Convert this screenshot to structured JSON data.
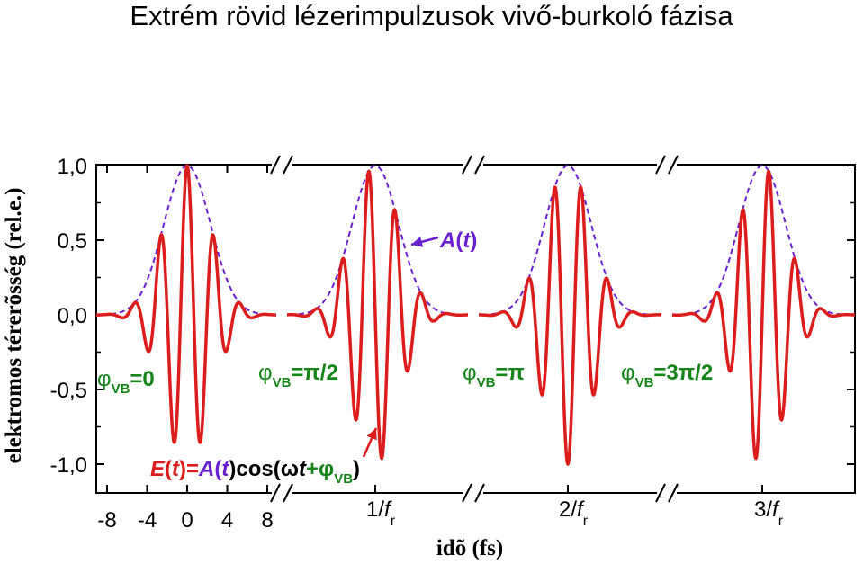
{
  "title": "Extrém rövid lézerimpulzusok vivő-burkoló fázisa",
  "colors": {
    "field": "#dd1c1c",
    "envelope": "#6a1fd1",
    "phase": "#15851a",
    "axis": "#000000"
  },
  "chart_data": {
    "type": "line",
    "title": "Extrém rövid lézerimpulzusok vivő-burkoló fázisa",
    "xlabel": "idõ (fs)",
    "ylabel": "elektromos térerõsség (rel.e.)",
    "ylim": [
      -1.2,
      1.0
    ],
    "yticks": [
      1.0,
      0.5,
      0.0,
      -0.5,
      -1.0
    ],
    "ytick_labels": [
      "1,0",
      "0,5",
      "0,0",
      "-0,5",
      "-1,0"
    ],
    "xlim": [
      -11,
      11
    ],
    "xticks": [
      -8,
      -4,
      0,
      4,
      8
    ],
    "xtick_labels": [
      "-8",
      "-4",
      "0",
      "4",
      "8"
    ],
    "axis_break_marks": "//",
    "segment_labels": [
      {
        "text": "1/",
        "sub": "r",
        "italic": "f"
      },
      {
        "text": "2/",
        "sub": "r",
        "italic": "f"
      },
      {
        "text": "3/",
        "sub": "r",
        "italic": "f"
      }
    ],
    "pulse_model": {
      "envelope_fwhm_fs": 5.5,
      "carrier_period_fs": 2.65,
      "amplitude": 1.0
    },
    "series": [
      {
        "name": "E(t)",
        "cep": "0",
        "cep_rad": 0
      },
      {
        "name": "E(t)",
        "cep": "π/2",
        "cep_rad": 1.5708
      },
      {
        "name": "E(t)",
        "cep": "π",
        "cep_rad": 3.1416
      },
      {
        "name": "E(t)",
        "cep": "3π/2",
        "cep_rad": 4.7124
      }
    ],
    "envelope_label": {
      "A": "A",
      "open": "(",
      "t": "t",
      "close": ")"
    },
    "phase_labels": [
      {
        "phi": "φ",
        "sub": "VB",
        "value": "=0"
      },
      {
        "phi": "φ",
        "sub": "VB",
        "value": "=π/2"
      },
      {
        "phi": "φ",
        "sub": "VB",
        "value": "=π"
      },
      {
        "phi": "φ",
        "sub": "VB",
        "value": "=3π/2"
      }
    ],
    "formula": {
      "E": "E",
      "t1": "t",
      "eq": ")=",
      "A": "A",
      "t2": "t",
      "cos": ")cos(ω",
      "t3": "t",
      "plus": "+φ",
      "sub": "VB",
      "close": ")"
    }
  }
}
